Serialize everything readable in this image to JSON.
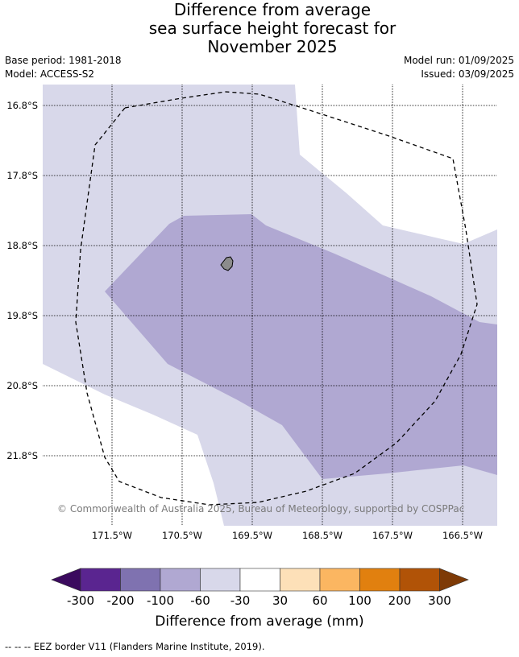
{
  "title": {
    "line1": "Difference from average",
    "line2": "sea surface height forecast for",
    "line3": "November 2025"
  },
  "meta": {
    "base_period": "Base period: 1981-2018",
    "model": "Model: ACCESS-S2",
    "model_run": "Model run: 01/09/2025",
    "issued": "Issued: 03/09/2025"
  },
  "map": {
    "lat_labels": [
      "16.8°S",
      "17.8°S",
      "18.8°S",
      "19.8°S",
      "20.8°S",
      "21.8°S"
    ],
    "lon_labels": [
      "171.5°W",
      "170.5°W",
      "169.5°W",
      "168.5°W",
      "167.5°W",
      "166.5°W"
    ],
    "copyright": "© Commonwealth of Australia 2025, Bureau of Meteorology, supported by COSPPac"
  },
  "colorbar": {
    "colors": [
      "#3b0a5e",
      "#5a2590",
      "#7f72b0",
      "#b0a8d2",
      "#d8d8ea",
      "#ffffff",
      "#fde0b8",
      "#fbb661",
      "#e1800f",
      "#b15307",
      "#7e3a06"
    ],
    "ticks": [
      "-300",
      "-200",
      "-100",
      "-60",
      "-30",
      "30",
      "60",
      "100",
      "200",
      "300"
    ],
    "label": "Difference from average (mm)"
  },
  "footnote": "--  --  -- EEZ border V11 (Flanders Marine Institute, 2019)."
}
